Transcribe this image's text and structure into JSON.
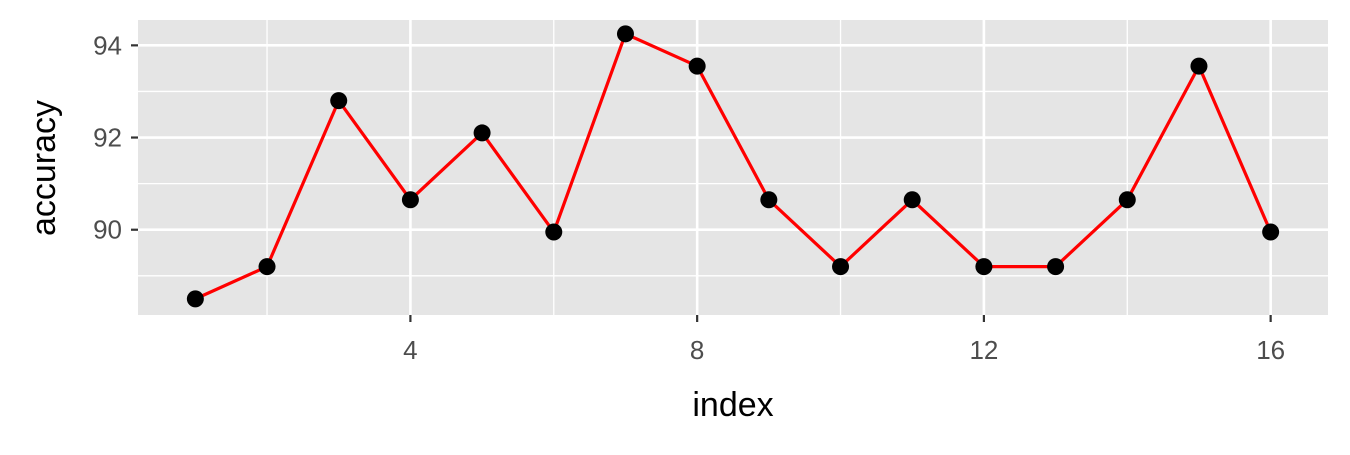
{
  "chart_data": {
    "type": "line",
    "title": "",
    "xlabel": "index",
    "ylabel": "accuracy",
    "x": [
      1,
      2,
      3,
      4,
      5,
      6,
      7,
      8,
      9,
      10,
      11,
      12,
      13,
      14,
      15,
      16
    ],
    "series": [
      {
        "values": [
          88.5,
          89.2,
          92.8,
          90.65,
          92.1,
          89.95,
          94.25,
          93.55,
          90.65,
          89.2,
          90.65,
          89.2,
          89.2,
          90.65,
          93.55,
          89.95
        ]
      }
    ],
    "xlim": [
      0.2,
      16.8
    ],
    "ylim": [
      88.15,
      94.55
    ],
    "x_ticks": [
      4,
      8,
      12,
      16
    ],
    "x_tick_labels": [
      "4",
      "8",
      "12",
      "16"
    ],
    "y_ticks": [
      90,
      92,
      94
    ],
    "y_tick_labels": [
      "90",
      "92",
      "94"
    ],
    "x_minor_ticks": [
      2,
      6,
      10,
      14
    ],
    "y_minor_ticks": [
      89,
      91,
      93
    ],
    "grid": true,
    "legend": "none",
    "colors": {
      "panel_background": "#e5e5e5",
      "grid": "#ffffff",
      "line": "#ff0000",
      "points": "#000000",
      "tick_text": "#4d4d4d",
      "axis_title": "#000000"
    }
  }
}
